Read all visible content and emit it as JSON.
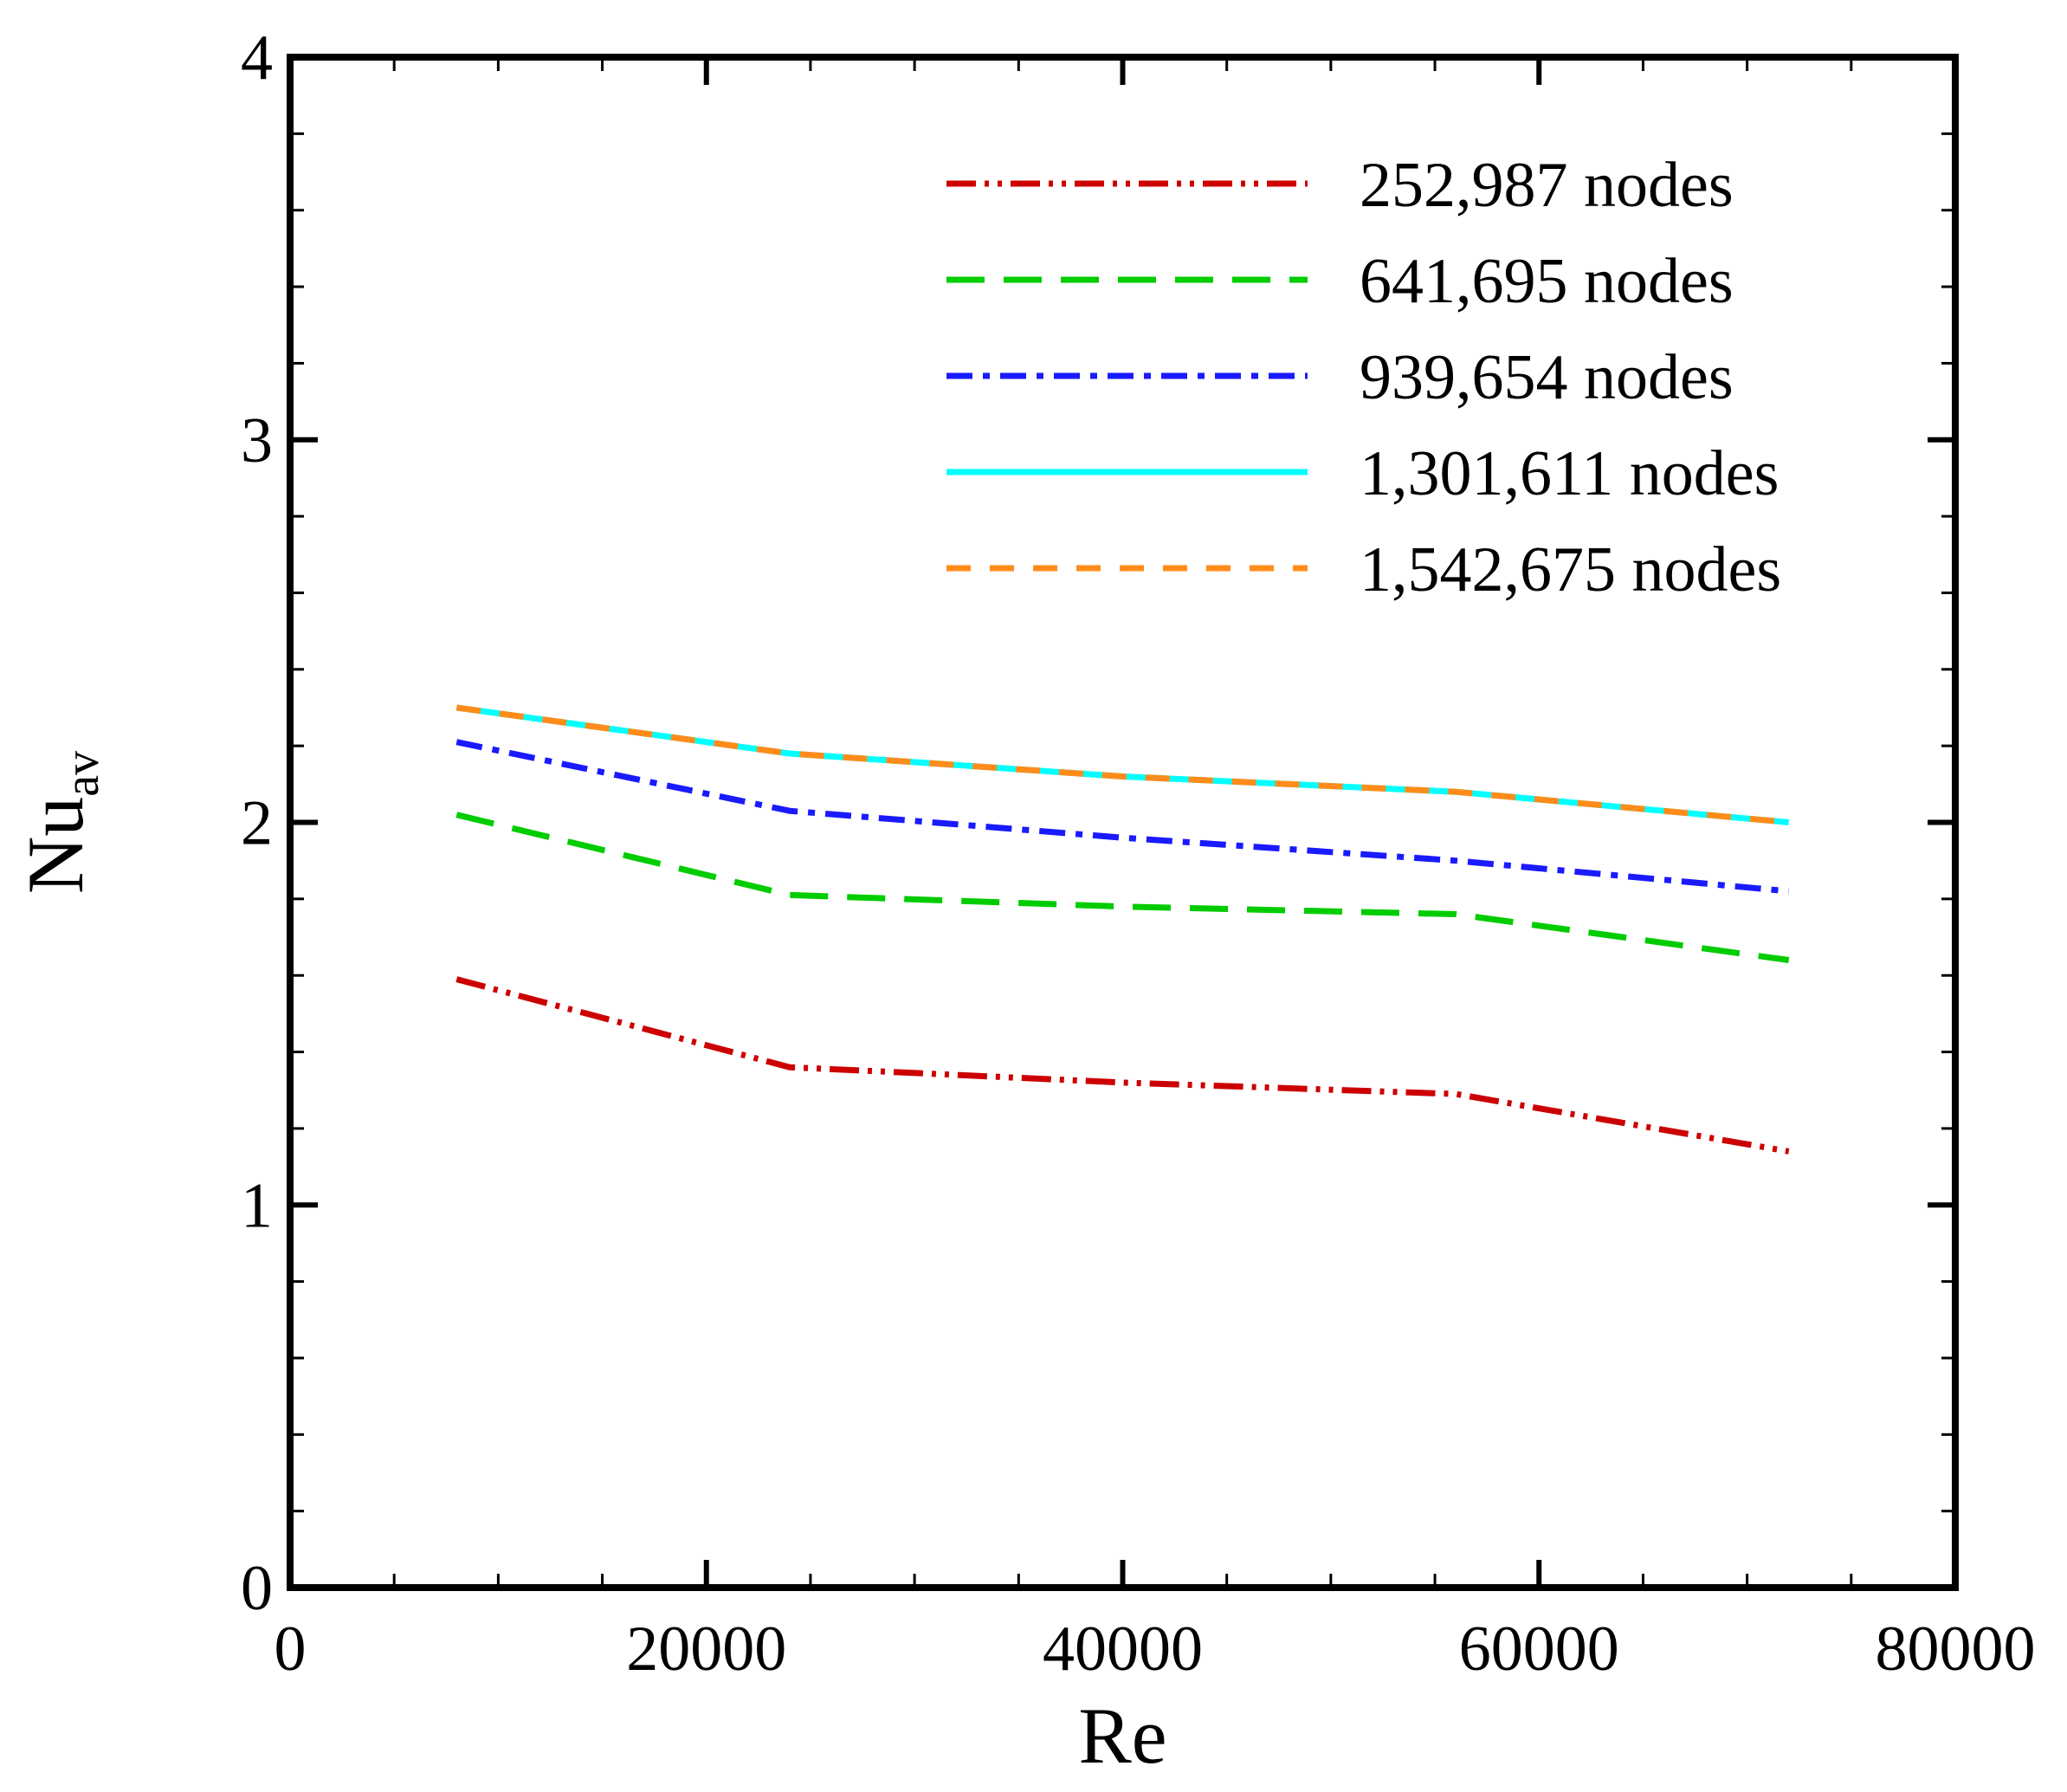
{
  "chart_data": {
    "type": "line",
    "title": "",
    "xlabel": "Re",
    "ylabel": {
      "main": "Nu",
      "subscript": "av"
    },
    "xlim": [
      0,
      80000
    ],
    "ylim": [
      0,
      4
    ],
    "x_ticks": [
      0,
      20000,
      40000,
      60000,
      80000
    ],
    "x_tick_labels": [
      "0",
      "20000",
      "40000",
      "60000",
      "80000"
    ],
    "y_ticks": [
      0,
      1,
      2,
      3,
      4
    ],
    "y_tick_labels": [
      "0",
      "1",
      "2",
      "3",
      "4"
    ],
    "x_minor_step": 5000,
    "y_minor_step": 0.2,
    "grid": false,
    "legend_position": "top-right",
    "x": [
      8000,
      24000,
      40000,
      56000,
      72000
    ],
    "series": [
      {
        "name": "252,987 nodes",
        "color": "#cc0000",
        "style": "dash-dot-dot",
        "values": [
          1.59,
          1.36,
          1.32,
          1.29,
          1.14
        ]
      },
      {
        "name": "641,695 nodes",
        "color": "#00cc00",
        "style": "long-dash",
        "values": [
          2.02,
          1.81,
          1.78,
          1.76,
          1.64
        ]
      },
      {
        "name": "939,654 nodes",
        "color": "#1a1aff",
        "style": "dash-dot",
        "values": [
          2.21,
          2.03,
          1.96,
          1.9,
          1.82
        ]
      },
      {
        "name": "1,301,611 nodes",
        "color": "#00ffff",
        "style": "solid",
        "values": [
          2.3,
          2.18,
          2.12,
          2.08,
          2.0
        ]
      },
      {
        "name": "1,542,675 nodes",
        "color": "#ff8c1a",
        "style": "short-dash",
        "values": [
          2.3,
          2.18,
          2.12,
          2.08,
          2.0
        ]
      }
    ]
  }
}
